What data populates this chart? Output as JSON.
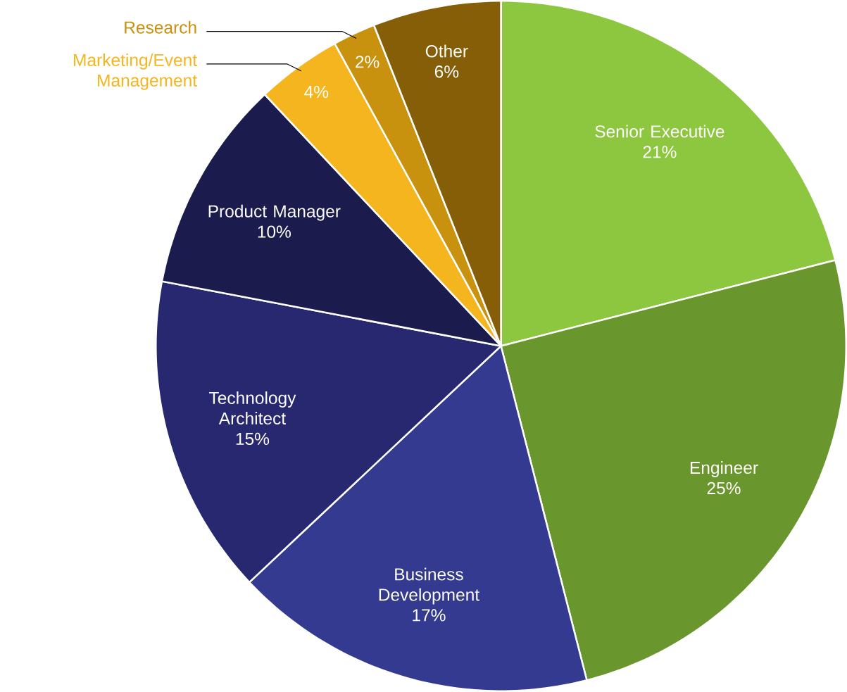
{
  "chart_data": {
    "type": "pie",
    "categories": [
      "Senior Executive",
      "Engineer",
      "Business Development",
      "Technology Architect",
      "Product Manager",
      "Marketing/Event Management",
      "Research",
      "Other"
    ],
    "values": [
      21,
      25,
      17,
      15,
      10,
      4,
      2,
      6
    ],
    "value_labels": [
      "21%",
      "25%",
      "17%",
      "15%",
      "10%",
      "4%",
      "2%",
      "6%"
    ],
    "colors": [
      "#8dc63f",
      "#6a962e",
      "#333a8f",
      "#272870",
      "#1b1b4e",
      "#f5b51f",
      "#c8910e",
      "#855e07"
    ]
  }
}
